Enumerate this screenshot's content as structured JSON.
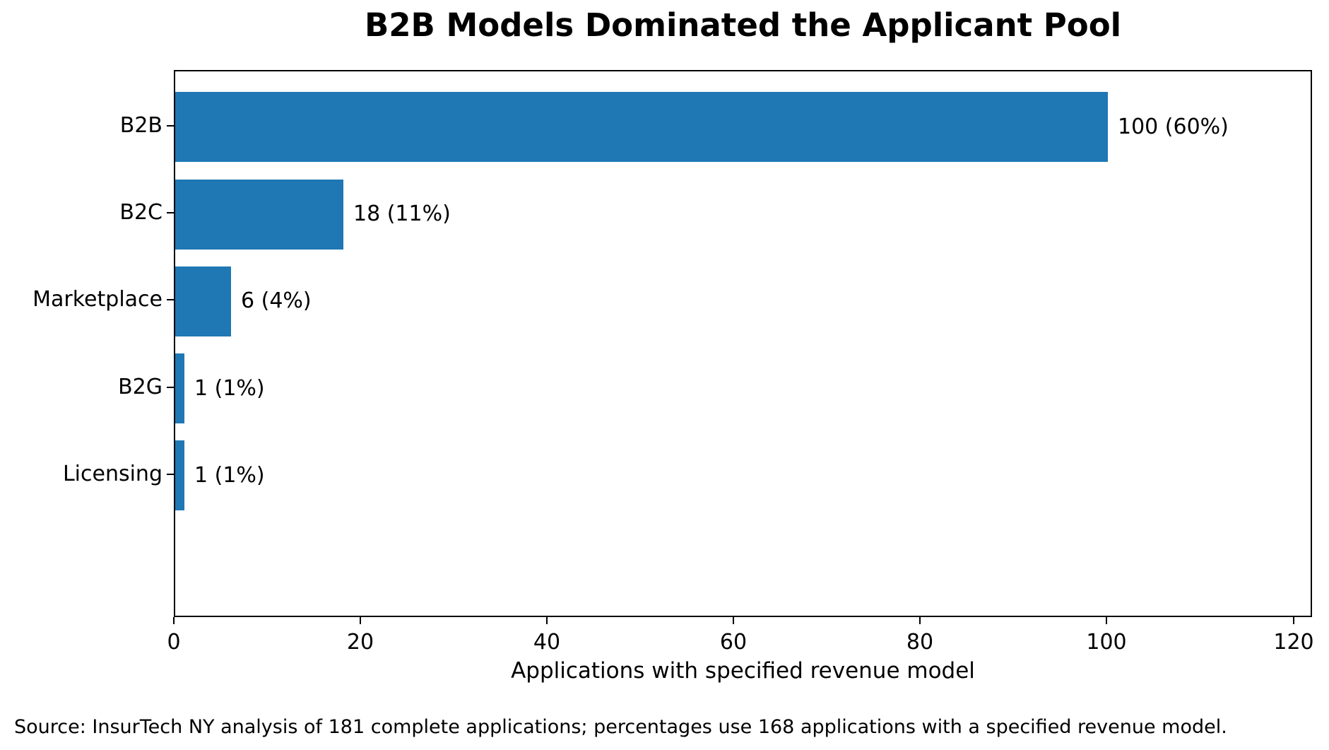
{
  "source_note": "Source: InsurTech NY analysis of 181 complete applications; percentages use 168 applications with a specified revenue model.",
  "chart_data": {
    "type": "bar",
    "orientation": "horizontal",
    "title": "B2B Models Dominated the Applicant Pool",
    "xlabel": "Applications with specified revenue model",
    "ylabel": "",
    "categories": [
      "B2B",
      "B2C",
      "Marketplace",
      "B2G",
      "Licensing"
    ],
    "values": [
      100,
      18,
      6,
      1,
      1
    ],
    "bar_labels": [
      "100 (60%)",
      "18 (11%)",
      "6 (4%)",
      "1 (1%)",
      "1 (1%)"
    ],
    "percentages": [
      60,
      11,
      4,
      1,
      1
    ],
    "xticks": [
      0,
      20,
      40,
      60,
      80,
      100,
      120
    ],
    "xlim": [
      0,
      122
    ],
    "grid": false,
    "legend": null,
    "bar_color": "#1f77b4",
    "axis_color": "#000000",
    "background_color": "#ffffff"
  }
}
